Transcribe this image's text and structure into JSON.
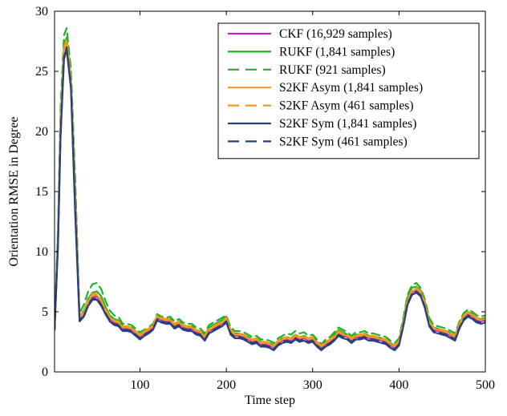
{
  "chart_data": {
    "type": "line",
    "title": "",
    "xlabel": "Time step",
    "ylabel": "Orientation RMSE in Degree",
    "xlim": [
      1,
      500
    ],
    "ylim": [
      0,
      30
    ],
    "xticks": [
      100,
      200,
      300,
      400,
      500
    ],
    "yticks": [
      0,
      5,
      10,
      15,
      20,
      25,
      30
    ],
    "grid": false,
    "legend_position": "top-right",
    "x": [
      1,
      5,
      8,
      12,
      15,
      20,
      25,
      30,
      35,
      40,
      45,
      50,
      55,
      60,
      65,
      70,
      75,
      80,
      85,
      90,
      95,
      100,
      105,
      110,
      115,
      120,
      125,
      130,
      135,
      140,
      145,
      150,
      155,
      160,
      165,
      170,
      175,
      180,
      185,
      190,
      195,
      200,
      205,
      210,
      215,
      220,
      225,
      230,
      235,
      240,
      245,
      250,
      255,
      260,
      265,
      270,
      275,
      280,
      285,
      290,
      295,
      300,
      305,
      310,
      315,
      320,
      325,
      330,
      335,
      340,
      345,
      350,
      355,
      360,
      365,
      370,
      375,
      380,
      385,
      390,
      395,
      400,
      405,
      410,
      415,
      420,
      425,
      430,
      435,
      440,
      445,
      450,
      455,
      460,
      465,
      470,
      475,
      480,
      485,
      490,
      495,
      500
    ],
    "series": [
      {
        "name": "CKF (16,929 samples)",
        "color": "#c71fc7",
        "dash": "solid",
        "values": [
          3.5,
          11,
          20,
          26.5,
          27.2,
          24,
          14,
          4.4,
          4.8,
          5.8,
          6.2,
          6.3,
          5.7,
          5.0,
          4.4,
          4.1,
          4.0,
          3.6,
          3.6,
          3.5,
          3.2,
          2.9,
          3.2,
          3.4,
          3.7,
          4.5,
          4.3,
          4.2,
          4.2,
          3.8,
          4.0,
          3.7,
          3.6,
          3.6,
          3.3,
          3.2,
          2.8,
          3.4,
          3.6,
          3.8,
          4.0,
          4.3,
          3.3,
          3.0,
          3.0,
          2.9,
          2.7,
          2.5,
          2.6,
          2.3,
          2.3,
          2.2,
          2.0,
          2.4,
          2.6,
          2.7,
          2.6,
          2.9,
          2.7,
          2.8,
          2.6,
          2.7,
          2.3,
          2.0,
          2.3,
          2.5,
          2.8,
          3.2,
          3.0,
          2.9,
          2.6,
          2.9,
          2.9,
          3.0,
          2.8,
          2.8,
          2.7,
          2.6,
          2.5,
          2.2,
          2.0,
          2.4,
          4.0,
          5.8,
          6.6,
          6.8,
          6.5,
          5.5,
          4.0,
          3.5,
          3.4,
          3.3,
          3.2,
          3.0,
          2.8,
          3.8,
          4.5,
          4.8,
          4.6,
          4.3,
          4.2,
          4.3
        ]
      },
      {
        "name": "RUKF (1,841 samples)",
        "color": "#23b024",
        "dash": "solid",
        "values": [
          3.5,
          11.5,
          21,
          27.2,
          27.8,
          24.5,
          15,
          4.6,
          5.1,
          6.1,
          6.6,
          6.7,
          6.3,
          5.4,
          4.7,
          4.4,
          4.3,
          3.8,
          3.8,
          3.7,
          3.4,
          3.1,
          3.3,
          3.5,
          3.8,
          4.7,
          4.5,
          4.4,
          4.4,
          4.0,
          4.2,
          3.9,
          3.8,
          3.8,
          3.5,
          3.4,
          3.0,
          3.7,
          3.9,
          4.1,
          4.3,
          4.6,
          3.5,
          3.2,
          3.2,
          3.1,
          2.9,
          2.7,
          2.8,
          2.5,
          2.5,
          2.4,
          2.2,
          2.6,
          2.8,
          2.9,
          2.8,
          3.1,
          2.9,
          3.0,
          2.8,
          2.9,
          2.5,
          2.2,
          2.5,
          2.7,
          3.1,
          3.5,
          3.3,
          3.1,
          2.8,
          3.1,
          3.1,
          3.2,
          3.0,
          3.0,
          2.9,
          2.8,
          2.7,
          2.4,
          2.2,
          2.6,
          4.3,
          6.2,
          7.0,
          7.1,
          6.8,
          5.8,
          4.3,
          3.7,
          3.6,
          3.5,
          3.4,
          3.2,
          3.0,
          4.0,
          4.7,
          5.0,
          4.8,
          4.5,
          4.4,
          4.5
        ]
      },
      {
        "name": "RUKF (921 samples)",
        "color": "#23b024",
        "dash": "dashed",
        "values": [
          3.5,
          12,
          22,
          28.0,
          28.6,
          25.2,
          16,
          4.9,
          5.6,
          6.7,
          7.3,
          7.4,
          6.9,
          5.9,
          5.1,
          4.7,
          4.6,
          4.0,
          4.0,
          3.9,
          3.6,
          3.3,
          3.5,
          3.7,
          4.0,
          4.8,
          4.6,
          4.5,
          4.6,
          4.2,
          4.4,
          4.1,
          4.0,
          4.0,
          3.7,
          3.6,
          3.2,
          3.9,
          4.1,
          4.3,
          4.5,
          4.7,
          3.7,
          3.4,
          3.4,
          3.3,
          3.1,
          2.9,
          3.0,
          2.7,
          2.7,
          2.6,
          2.4,
          2.8,
          3.0,
          3.2,
          3.1,
          3.4,
          3.2,
          3.3,
          3.0,
          3.1,
          2.7,
          2.3,
          2.7,
          2.9,
          3.3,
          3.7,
          3.5,
          3.3,
          3.0,
          3.3,
          3.3,
          3.4,
          3.2,
          3.2,
          3.1,
          3.0,
          2.9,
          2.6,
          2.4,
          2.8,
          4.5,
          6.4,
          7.2,
          7.4,
          7.0,
          6.0,
          4.5,
          3.9,
          3.8,
          3.7,
          3.6,
          3.4,
          3.2,
          4.2,
          4.9,
          5.2,
          5.0,
          4.7,
          4.6,
          4.7
        ]
      },
      {
        "name": "S2KF Asym (1,841 samples)",
        "color": "#f39a1e",
        "dash": "solid",
        "values": [
          3.5,
          11,
          20.5,
          26.8,
          27.4,
          24.2,
          14,
          4.5,
          4.9,
          5.9,
          6.4,
          6.4,
          5.9,
          5.1,
          4.5,
          4.2,
          4.1,
          3.7,
          3.7,
          3.6,
          3.3,
          3.0,
          3.3,
          3.5,
          3.8,
          4.6,
          4.4,
          4.3,
          4.3,
          3.9,
          4.1,
          3.8,
          3.7,
          3.7,
          3.4,
          3.3,
          2.9,
          3.5,
          3.7,
          3.9,
          4.1,
          4.4,
          3.4,
          3.1,
          3.1,
          3.0,
          2.8,
          2.6,
          2.7,
          2.4,
          2.4,
          2.3,
          2.1,
          2.5,
          2.7,
          2.8,
          2.7,
          3.0,
          2.8,
          2.9,
          2.7,
          2.8,
          2.4,
          2.1,
          2.4,
          2.6,
          2.9,
          3.3,
          3.1,
          3.0,
          2.7,
          3.0,
          3.0,
          3.1,
          2.9,
          2.9,
          2.8,
          2.7,
          2.6,
          2.3,
          2.1,
          2.5,
          4.1,
          5.9,
          6.7,
          6.9,
          6.6,
          5.6,
          4.1,
          3.6,
          3.5,
          3.4,
          3.3,
          3.1,
          2.9,
          3.9,
          4.6,
          4.9,
          4.7,
          4.4,
          4.3,
          4.4
        ]
      },
      {
        "name": "S2KF Asym (461 samples)",
        "color": "#f39a1e",
        "dash": "dashed",
        "values": [
          3.5,
          11.2,
          20.8,
          27.0,
          27.6,
          24.4,
          14.5,
          4.6,
          5.0,
          6.0,
          6.5,
          6.5,
          6.0,
          5.2,
          4.6,
          4.3,
          4.2,
          3.8,
          3.8,
          3.7,
          3.4,
          3.1,
          3.4,
          3.6,
          3.9,
          4.7,
          4.5,
          4.4,
          4.4,
          4.0,
          4.2,
          3.9,
          3.8,
          3.8,
          3.5,
          3.4,
          3.0,
          3.6,
          3.8,
          4.0,
          4.2,
          4.5,
          3.5,
          3.2,
          3.2,
          3.1,
          2.9,
          2.7,
          2.8,
          2.5,
          2.5,
          2.4,
          2.2,
          2.6,
          2.8,
          2.9,
          2.8,
          3.1,
          2.9,
          3.0,
          2.8,
          2.9,
          2.5,
          2.2,
          2.5,
          2.7,
          3.0,
          3.4,
          3.2,
          3.1,
          2.8,
          3.1,
          3.1,
          3.2,
          3.0,
          3.0,
          2.9,
          2.8,
          2.7,
          2.4,
          2.2,
          2.6,
          4.2,
          6.0,
          6.8,
          7.0,
          6.7,
          5.7,
          4.2,
          3.7,
          3.6,
          3.5,
          3.4,
          3.2,
          3.0,
          4.0,
          4.7,
          5.0,
          4.8,
          4.5,
          4.4,
          4.5
        ]
      },
      {
        "name": "S2KF Sym (1,841 samples)",
        "color": "#2a3f7e",
        "dash": "solid",
        "values": [
          3.5,
          10.5,
          19.5,
          26.0,
          26.8,
          23.6,
          13,
          4.2,
          4.6,
          5.5,
          6.0,
          6.0,
          5.5,
          4.8,
          4.2,
          3.9,
          3.8,
          3.4,
          3.4,
          3.3,
          3.0,
          2.7,
          3.0,
          3.2,
          3.5,
          4.3,
          4.1,
          4.0,
          4.0,
          3.6,
          3.8,
          3.5,
          3.4,
          3.4,
          3.1,
          3.0,
          2.6,
          3.2,
          3.4,
          3.6,
          3.8,
          4.1,
          3.1,
          2.8,
          2.8,
          2.7,
          2.5,
          2.3,
          2.4,
          2.1,
          2.1,
          2.0,
          1.8,
          2.2,
          2.4,
          2.5,
          2.4,
          2.7,
          2.5,
          2.6,
          2.4,
          2.5,
          2.1,
          1.8,
          2.1,
          2.3,
          2.6,
          3.0,
          2.8,
          2.7,
          2.4,
          2.7,
          2.7,
          2.8,
          2.6,
          2.6,
          2.5,
          2.4,
          2.3,
          2.0,
          1.8,
          2.2,
          3.8,
          5.6,
          6.4,
          6.6,
          6.3,
          5.3,
          3.8,
          3.3,
          3.2,
          3.1,
          3.0,
          2.8,
          2.6,
          3.6,
          4.3,
          4.6,
          4.4,
          4.1,
          4.0,
          4.1
        ]
      },
      {
        "name": "S2KF Sym (461 samples)",
        "color": "#2a3f7e",
        "dash": "dashed",
        "values": [
          3.5,
          10.7,
          19.8,
          26.2,
          27.0,
          23.8,
          13.5,
          4.3,
          4.7,
          5.6,
          6.1,
          6.1,
          5.6,
          4.9,
          4.3,
          4.0,
          3.9,
          3.5,
          3.5,
          3.4,
          3.1,
          2.8,
          3.1,
          3.3,
          3.6,
          4.4,
          4.2,
          4.1,
          4.1,
          3.7,
          3.9,
          3.6,
          3.5,
          3.5,
          3.2,
          3.1,
          2.7,
          3.3,
          3.5,
          3.7,
          3.9,
          4.2,
          3.2,
          2.9,
          2.9,
          2.8,
          2.6,
          2.4,
          2.5,
          2.2,
          2.2,
          2.1,
          1.9,
          2.3,
          2.5,
          2.6,
          2.5,
          2.8,
          2.6,
          2.7,
          2.5,
          2.6,
          2.2,
          1.9,
          2.2,
          2.4,
          2.7,
          3.1,
          2.9,
          2.8,
          2.5,
          2.8,
          2.8,
          2.9,
          2.7,
          2.7,
          2.6,
          2.5,
          2.4,
          2.1,
          1.9,
          2.3,
          3.9,
          5.7,
          6.5,
          6.7,
          6.4,
          5.4,
          3.9,
          3.4,
          3.3,
          3.2,
          3.1,
          2.9,
          2.7,
          3.7,
          4.4,
          4.7,
          4.5,
          4.2,
          4.1,
          4.2
        ]
      }
    ]
  }
}
